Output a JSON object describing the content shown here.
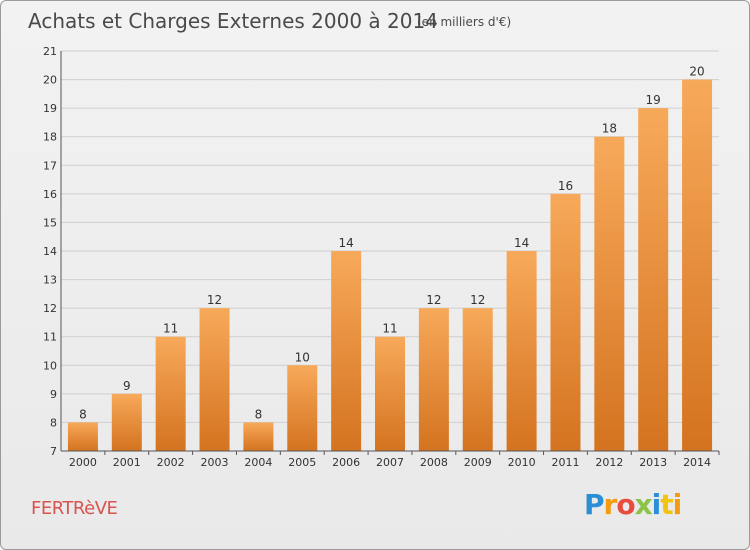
{
  "header": {
    "title": "Achats et Charges Externes 2000 à 2014",
    "subtitle": "(en milliers d'€)"
  },
  "footer": {
    "commune": "FERTRèVE",
    "logo_text": [
      "P",
      "r",
      "o",
      "x",
      "i",
      "t",
      "i"
    ]
  },
  "colors": {
    "bar_top": "#f7a95a",
    "bar_bottom": "#d4731f",
    "grid": "#cfcfcf",
    "axis": "#555555",
    "label": "#333333"
  },
  "chart_data": {
    "type": "bar",
    "title": "Achats et Charges Externes 2000 à 2014",
    "subtitle": "(en milliers d'€)",
    "categories": [
      "2000",
      "2001",
      "2002",
      "2003",
      "2004",
      "2005",
      "2006",
      "2007",
      "2008",
      "2009",
      "2010",
      "2011",
      "2012",
      "2013",
      "2014"
    ],
    "values": [
      8,
      9,
      11,
      12,
      8,
      10,
      14,
      11,
      12,
      12,
      14,
      16,
      18,
      19,
      20
    ],
    "ylim": [
      7,
      21
    ],
    "yticks": [
      7,
      8,
      9,
      10,
      11,
      12,
      13,
      14,
      15,
      16,
      17,
      18,
      19,
      20,
      21
    ],
    "grid": true,
    "data_labels": true,
    "xlabel": "",
    "ylabel": ""
  }
}
